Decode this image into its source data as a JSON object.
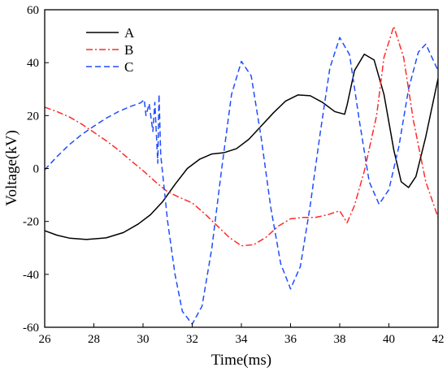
{
  "chart_data": {
    "type": "line",
    "xlabel": "Time(ms)",
    "ylabel": "Voltage(kV)",
    "xlim": [
      26,
      42
    ],
    "ylim": [
      -60,
      60
    ],
    "xticks": [
      26,
      28,
      30,
      32,
      34,
      36,
      38,
      40,
      42
    ],
    "yticks": [
      -60,
      -40,
      -20,
      0,
      20,
      40,
      60
    ],
    "grid": false,
    "legend_position": "top-left",
    "series": [
      {
        "name": "A",
        "color": "#000000",
        "style": "solid",
        "points": [
          [
            26,
            -23.5
          ],
          [
            26.5,
            -25.2
          ],
          [
            27,
            -26.3
          ],
          [
            27.7,
            -26.8
          ],
          [
            28.5,
            -26.2
          ],
          [
            29.2,
            -24.2
          ],
          [
            29.8,
            -21
          ],
          [
            30.3,
            -17.5
          ],
          [
            30.8,
            -12.5
          ],
          [
            31.3,
            -6
          ],
          [
            31.8,
            0
          ],
          [
            32.3,
            3.5
          ],
          [
            32.8,
            5.5
          ],
          [
            33.3,
            6
          ],
          [
            33.8,
            7.5
          ],
          [
            34.3,
            11
          ],
          [
            34.8,
            16
          ],
          [
            35.3,
            21
          ],
          [
            35.8,
            25.5
          ],
          [
            36.3,
            27.8
          ],
          [
            36.8,
            27.5
          ],
          [
            37.3,
            25
          ],
          [
            37.8,
            21.5
          ],
          [
            38.2,
            20.5
          ],
          [
            38.3,
            24
          ],
          [
            38.6,
            37
          ],
          [
            39,
            43.2
          ],
          [
            39.4,
            41
          ],
          [
            39.8,
            28
          ],
          [
            40.2,
            7
          ],
          [
            40.5,
            -5
          ],
          [
            40.8,
            -7.2
          ],
          [
            41.1,
            -3
          ],
          [
            41.5,
            12
          ],
          [
            42,
            34
          ]
        ]
      },
      {
        "name": "B",
        "color": "#ff2a2a",
        "style": "dashdot",
        "points": [
          [
            26,
            23.2
          ],
          [
            26.5,
            21.5
          ],
          [
            27,
            19.5
          ],
          [
            27.5,
            16.8
          ],
          [
            28,
            13.7
          ],
          [
            28.5,
            10.5
          ],
          [
            29,
            7
          ],
          [
            29.5,
            3
          ],
          [
            30,
            -0.8
          ],
          [
            30.5,
            -5
          ],
          [
            31,
            -8.8
          ],
          [
            31.5,
            -11
          ],
          [
            32,
            -13
          ],
          [
            32.5,
            -17
          ],
          [
            33,
            -21.5
          ],
          [
            33.5,
            -26
          ],
          [
            34,
            -29.2
          ],
          [
            34.5,
            -28.8
          ],
          [
            35,
            -26
          ],
          [
            35.5,
            -21.8
          ],
          [
            36,
            -19
          ],
          [
            36.5,
            -18.5
          ],
          [
            37,
            -18.5
          ],
          [
            37.5,
            -17.5
          ],
          [
            38,
            -16
          ],
          [
            38.3,
            -20.5
          ],
          [
            38.6,
            -14
          ],
          [
            39,
            -1
          ],
          [
            39.5,
            20
          ],
          [
            39.8,
            42
          ],
          [
            40.2,
            53.7
          ],
          [
            40.6,
            42
          ],
          [
            41,
            18
          ],
          [
            41.5,
            -5
          ],
          [
            42,
            -18.5
          ]
        ]
      },
      {
        "name": "C",
        "color": "#1f4dff",
        "style": "dashed",
        "points": [
          [
            26,
            -0.5
          ],
          [
            26.5,
            4.5
          ],
          [
            27,
            9
          ],
          [
            27.5,
            12.8
          ],
          [
            28,
            16
          ],
          [
            28.5,
            19
          ],
          [
            29,
            21.5
          ],
          [
            29.5,
            23.5
          ],
          [
            29.9,
            24.8
          ],
          [
            30.05,
            26
          ],
          [
            30.12,
            20
          ],
          [
            30.25,
            24.5
          ],
          [
            30.4,
            14
          ],
          [
            30.48,
            25
          ],
          [
            30.6,
            2
          ],
          [
            30.65,
            28
          ],
          [
            30.72,
            5
          ],
          [
            31,
            -20
          ],
          [
            31.3,
            -40
          ],
          [
            31.6,
            -54
          ],
          [
            32,
            -58.8
          ],
          [
            32.4,
            -52
          ],
          [
            32.8,
            -30
          ],
          [
            33.2,
            0
          ],
          [
            33.6,
            28
          ],
          [
            34,
            40.5
          ],
          [
            34.4,
            35
          ],
          [
            34.8,
            12
          ],
          [
            35.2,
            -15
          ],
          [
            35.6,
            -36
          ],
          [
            36,
            -45.5
          ],
          [
            36.4,
            -37
          ],
          [
            36.8,
            -14
          ],
          [
            37.2,
            13
          ],
          [
            37.6,
            38
          ],
          [
            38,
            49.5
          ],
          [
            38.4,
            43
          ],
          [
            38.8,
            18
          ],
          [
            39.2,
            -5
          ],
          [
            39.6,
            -13.5
          ],
          [
            40,
            -8
          ],
          [
            40.4,
            8
          ],
          [
            40.8,
            30
          ],
          [
            41.2,
            44
          ],
          [
            41.5,
            47
          ],
          [
            42,
            37
          ]
        ]
      }
    ]
  }
}
